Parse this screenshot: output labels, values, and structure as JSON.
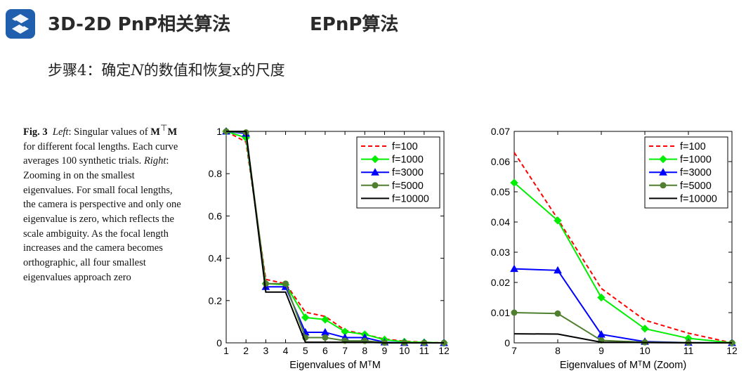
{
  "header": {
    "title": "3D-2D PnP相关算法",
    "subtitle": "EPnP算法"
  },
  "step": {
    "prefix": "步骤4：确定",
    "var": "N",
    "suffix": "的数值和恢复x的尺度"
  },
  "caption": {
    "label": "Fig. 3",
    "left_word": "Left",
    "part1": ": Singular values of ",
    "matrix": "M",
    "sup": "⊤",
    "matrix2": "M",
    "part2": " for different focal lengths. Each curve averages 100 synthetic trials. ",
    "right_word": "Right",
    "part3": ": Zooming in on the smallest eigenvalues. For small focal lengths, the camera is perspective and only one eigenvalue is zero, which reflects the scale ambiguity. As the focal length increases and the camera becomes orthographic, all four smallest eigenvalues approach zero"
  },
  "colors": {
    "logo": "#1f5fae",
    "f100": "#ff0000",
    "f1000": "#00ee00",
    "f3000": "#0000ff",
    "f5000": "#4f7f2f",
    "f10000": "#000000"
  },
  "chart_data": [
    {
      "type": "line",
      "xlabel": "Eigenvalues of MᵀM",
      "ylabel": "",
      "title": "",
      "x": [
        1,
        2,
        3,
        4,
        5,
        6,
        7,
        8,
        9,
        10,
        11,
        12
      ],
      "xlim": [
        1,
        12
      ],
      "ylim": [
        0,
        1
      ],
      "xticks": [
        1,
        2,
        3,
        4,
        5,
        6,
        7,
        8,
        9,
        10,
        11,
        12
      ],
      "yticks": [
        0,
        0.2,
        0.4,
        0.6,
        0.8,
        1
      ],
      "legend": "top-right",
      "grid": false,
      "series": [
        {
          "name": "f=100",
          "style": "dashed",
          "marker": "none",
          "color": "#ff0000",
          "values": [
            1.0,
            0.95,
            0.3,
            0.28,
            0.145,
            0.125,
            0.06,
            0.04,
            0.018,
            0.008,
            0.003,
            0.0
          ]
        },
        {
          "name": "f=1000",
          "style": "solid",
          "marker": "diamond",
          "color": "#00ee00",
          "values": [
            1.0,
            0.97,
            0.28,
            0.275,
            0.12,
            0.11,
            0.053,
            0.04,
            0.015,
            0.005,
            0.002,
            0.0
          ]
        },
        {
          "name": "f=3000",
          "style": "solid",
          "marker": "triangle",
          "color": "#0000ff",
          "values": [
            1.0,
            0.99,
            0.265,
            0.265,
            0.05,
            0.05,
            0.025,
            0.025,
            0.003,
            0.0004,
            0.0001,
            0.0
          ]
        },
        {
          "name": "f=5000",
          "style": "solid",
          "marker": "circle",
          "color": "#4f7f2f",
          "values": [
            1.0,
            0.995,
            0.28,
            0.28,
            0.025,
            0.025,
            0.01,
            0.0095,
            0.0008,
            0.0002,
            0.0001,
            0.0
          ]
        },
        {
          "name": "f=10000",
          "style": "solid",
          "marker": "none",
          "color": "#000000",
          "values": [
            1.0,
            1.0,
            0.24,
            0.24,
            0.003,
            0.003,
            0.003,
            0.003,
            0.0002,
            0.0001,
            0.0,
            0.0
          ]
        }
      ]
    },
    {
      "type": "line",
      "xlabel": "Eigenvalues of MᵀM (Zoom)",
      "ylabel": "",
      "title": "",
      "x": [
        7,
        8,
        9,
        10,
        11,
        12
      ],
      "xlim": [
        7,
        12
      ],
      "ylim": [
        0,
        0.07
      ],
      "xticks": [
        7,
        8,
        9,
        10,
        11,
        12
      ],
      "yticks": [
        0,
        0.01,
        0.02,
        0.03,
        0.04,
        0.05,
        0.06,
        0.07
      ],
      "legend": "top-right",
      "grid": false,
      "series": [
        {
          "name": "f=100",
          "style": "dashed",
          "marker": "none",
          "color": "#ff0000",
          "values": [
            0.063,
            0.041,
            0.018,
            0.0075,
            0.0032,
            0.0
          ]
        },
        {
          "name": "f=1000",
          "style": "solid",
          "marker": "diamond",
          "color": "#00ee00",
          "values": [
            0.053,
            0.0405,
            0.015,
            0.0047,
            0.0015,
            0.0
          ]
        },
        {
          "name": "f=3000",
          "style": "solid",
          "marker": "triangle",
          "color": "#0000ff",
          "values": [
            0.0245,
            0.024,
            0.0028,
            0.0004,
            0.0001,
            0.0
          ]
        },
        {
          "name": "f=5000",
          "style": "solid",
          "marker": "circle",
          "color": "#4f7f2f",
          "values": [
            0.01,
            0.0097,
            0.0008,
            0.0002,
            0.0001,
            0.0
          ]
        },
        {
          "name": "f=10000",
          "style": "solid",
          "marker": "none",
          "color": "#000000",
          "values": [
            0.003,
            0.0029,
            0.0002,
            0.0001,
            0.0,
            0.0
          ]
        }
      ]
    }
  ]
}
